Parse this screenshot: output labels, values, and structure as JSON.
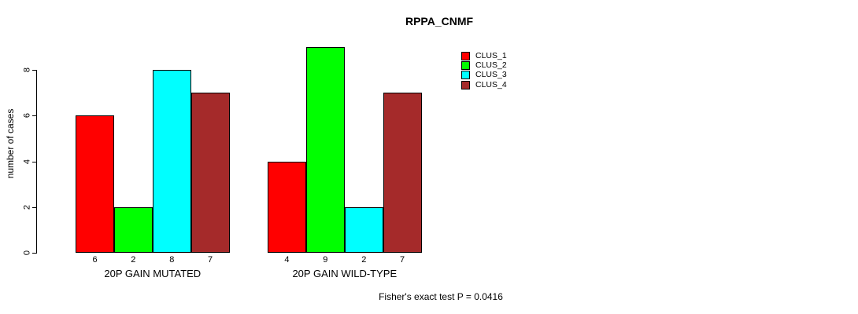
{
  "chart_data": {
    "type": "bar",
    "title": "RPPA_CNMF",
    "xlabel": "",
    "ylabel": "number of cases",
    "yticks": [
      0,
      2,
      4,
      6,
      8
    ],
    "ylim": [
      0,
      9
    ],
    "grid": false,
    "legend_position": "top-right",
    "categories": [
      "20P GAIN MUTATED",
      "20P GAIN WILD-TYPE"
    ],
    "series": [
      {
        "name": "CLUS_1",
        "color": "#ff0000",
        "values": [
          6,
          4
        ]
      },
      {
        "name": "CLUS_2",
        "color": "#00ff00",
        "values": [
          2,
          9
        ]
      },
      {
        "name": "CLUS_3",
        "color": "#00ffff",
        "values": [
          8,
          2
        ]
      },
      {
        "name": "CLUS_4",
        "color": "#a52a2a",
        "values": [
          7,
          7
        ]
      }
    ],
    "bar_value_labels": [
      [
        "6",
        "2",
        "8",
        "7"
      ],
      [
        "4",
        "9",
        "2",
        "7"
      ]
    ],
    "annotation": "Fisher's exact test P = 0.0416"
  }
}
